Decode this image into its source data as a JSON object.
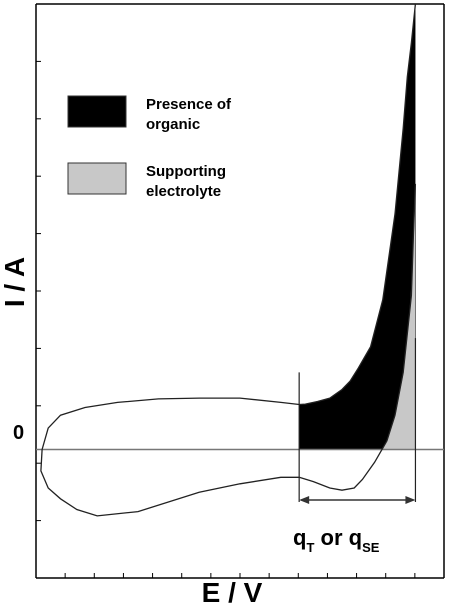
{
  "chart_data": {
    "type": "line",
    "title": "",
    "xlabel": "E / V",
    "ylabel": "I / A",
    "xlim": [
      0,
      1
    ],
    "ylim": [
      -0.3,
      1.04
    ],
    "zero_label": "0",
    "grid": false,
    "legend_position": "top-left",
    "legend": [
      {
        "label_lines": [
          "Presence of",
          "organic"
        ],
        "fill": "#000000"
      },
      {
        "label_lines": [
          "Supporting",
          "electrolyte"
        ],
        "fill": "#c8c8c8"
      }
    ],
    "series": [
      {
        "x": [
          0.645,
          0.66,
          0.69,
          0.72,
          0.75,
          0.77,
          0.79,
          0.82,
          0.85,
          0.88,
          0.9,
          0.91,
          0.92,
          0.93
        ],
        "values": [
          0.105,
          0.106,
          0.112,
          0.12,
          0.14,
          0.16,
          0.19,
          0.24,
          0.35,
          0.55,
          0.75,
          0.87,
          0.95,
          1.04
        ]
      },
      {
        "x": [
          0.645,
          0.6,
          0.5,
          0.4,
          0.3,
          0.2,
          0.12,
          0.06,
          0.03,
          0.015,
          0.012,
          0.03,
          0.06,
          0.1,
          0.15,
          0.25,
          0.4,
          0.5,
          0.6,
          0.645
        ],
        "values": [
          0.105,
          0.11,
          0.12,
          0.12,
          0.118,
          0.11,
          0.098,
          0.08,
          0.05,
          0.0,
          -0.05,
          -0.09,
          -0.115,
          -0.14,
          -0.155,
          -0.145,
          -0.1,
          -0.08,
          -0.065,
          -0.065
        ]
      },
      {
        "x": [
          0.645,
          0.68,
          0.72,
          0.75,
          0.78,
          0.8,
          0.83,
          0.86,
          0.88,
          0.9,
          0.92,
          0.925,
          0.93
        ],
        "values": [
          -0.065,
          -0.075,
          -0.09,
          -0.095,
          -0.09,
          -0.07,
          -0.03,
          0.02,
          0.08,
          0.18,
          0.36,
          0.5,
          0.62
        ]
      }
    ],
    "filled_regions": [
      {
        "name": "Presence of organic",
        "x_from": 0.645,
        "lower": 0.0
      },
      {
        "name": "Supporting electrolyte",
        "x_from": 0.765,
        "lower": 0.0
      }
    ],
    "annotation": {
      "text_a": "q",
      "sub_a": "T",
      "text_mid": " or ",
      "text_b": "q",
      "sub_b": "SE",
      "x_from": 0.645,
      "x_to": 0.93
    }
  }
}
